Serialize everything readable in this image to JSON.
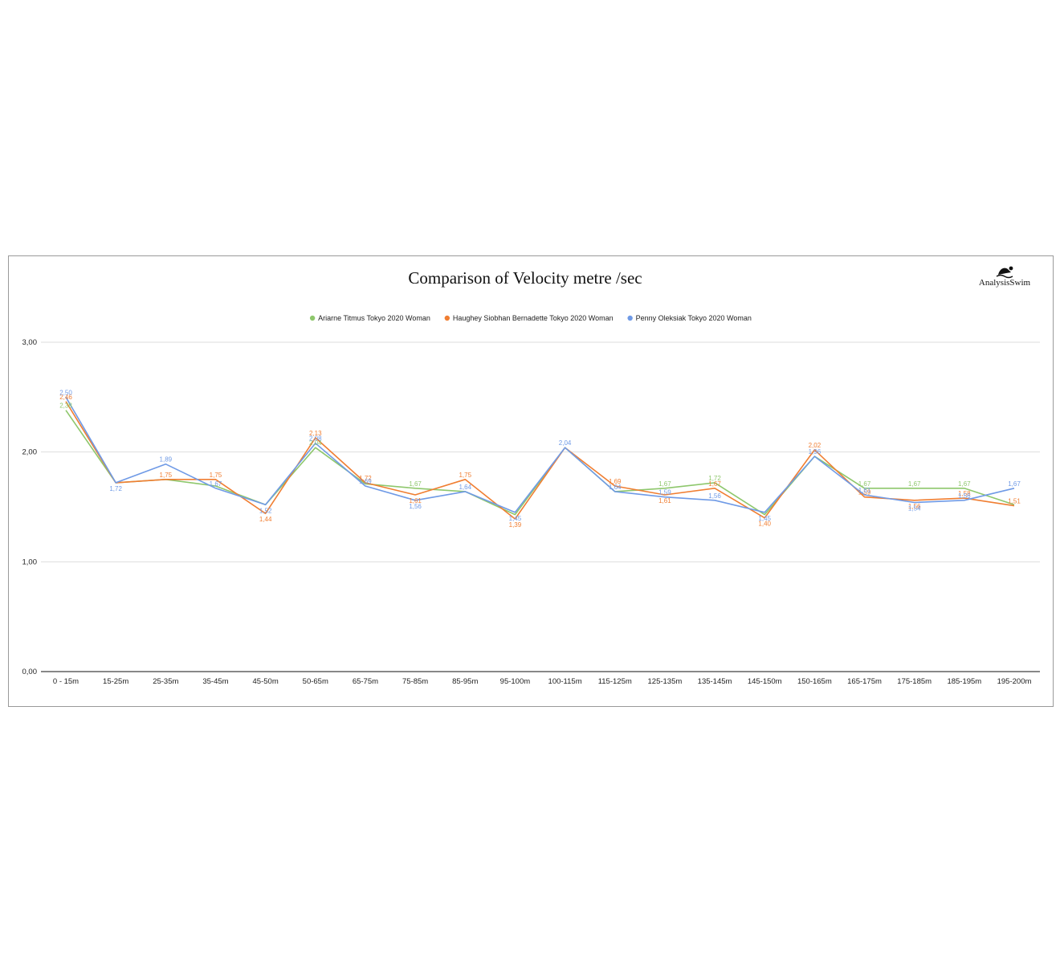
{
  "colors": {
    "series": [
      "#8ec76c",
      "#f07e32",
      "#6f9ae6"
    ],
    "grid": "#dddddd",
    "axis": "#888888"
  },
  "logo": {
    "icon": "swimmer-icon",
    "text": "AnalysisSwim"
  },
  "chart_data": {
    "type": "line",
    "title": "Comparison of Velocity metre /sec",
    "xlabel": "",
    "ylabel": "",
    "ylim": [
      0,
      3
    ],
    "yticks": [
      "0,00",
      "1,00",
      "2,00",
      "3,00"
    ],
    "ytick_values": [
      0,
      1,
      2,
      3
    ],
    "grid": true,
    "legend_position": "top-center",
    "categories": [
      "0 - 15m",
      "15-25m",
      "25-35m",
      "35-45m",
      "45-50m",
      "50-65m",
      "65-75m",
      "75-85m",
      "85-95m",
      "95-100m",
      "100-115m",
      "115-125m",
      "125-135m",
      "135-145m",
      "145-150m",
      "150-165m",
      "165-175m",
      "175-185m",
      "185-195m",
      "195-200m"
    ],
    "series": [
      {
        "name": "Ariarne Titmus Tokyo 2020 Woman",
        "values": [
          2.38,
          1.72,
          1.75,
          1.69,
          1.52,
          2.04,
          1.71,
          1.67,
          1.64,
          1.43,
          2.04,
          1.64,
          1.67,
          1.72,
          1.43,
          1.96,
          1.67,
          1.67,
          1.67,
          1.52
        ],
        "labels": [
          "2,38",
          "",
          "",
          "",
          "",
          "2,04",
          "",
          "1,67",
          "",
          "",
          "",
          "",
          "1,67",
          "1,72",
          "",
          "",
          "1,67",
          "1,67",
          "1,67",
          ""
        ]
      },
      {
        "name": "Haughey Siobhan Bernadette Tokyo 2020 Woman",
        "values": [
          2.46,
          1.72,
          1.75,
          1.75,
          1.44,
          2.13,
          1.72,
          1.61,
          1.75,
          1.39,
          2.04,
          1.69,
          1.61,
          1.67,
          1.4,
          2.02,
          1.59,
          1.56,
          1.58,
          1.51
        ],
        "labels": [
          "2,46",
          "",
          "1,75",
          "1,75",
          "1,44",
          "2,13",
          "1,72",
          "1,61",
          "1,75",
          "1,39",
          "",
          "1,69",
          "1,61",
          "1,67",
          "1,40",
          "2,02",
          "1,59",
          "1,56",
          "1,58",
          "1,51"
        ]
      },
      {
        "name": "Penny Oleksiak Tokyo 2020 Woman",
        "values": [
          2.5,
          1.72,
          1.89,
          1.67,
          1.52,
          2.08,
          1.69,
          1.56,
          1.64,
          1.45,
          2.04,
          1.64,
          1.59,
          1.56,
          1.45,
          1.96,
          1.61,
          1.54,
          1.56,
          1.67
        ],
        "labels": [
          "2,50",
          "1,72",
          "1,89",
          "1,67",
          "1,52",
          "2,08",
          "1,69",
          "1,56",
          "1,64",
          "1,45",
          "2,04",
          "1,64",
          "1,59",
          "1,56",
          "1,45",
          "1,96",
          "1,61",
          "1,54",
          "1,56",
          "1,67"
        ]
      }
    ]
  }
}
